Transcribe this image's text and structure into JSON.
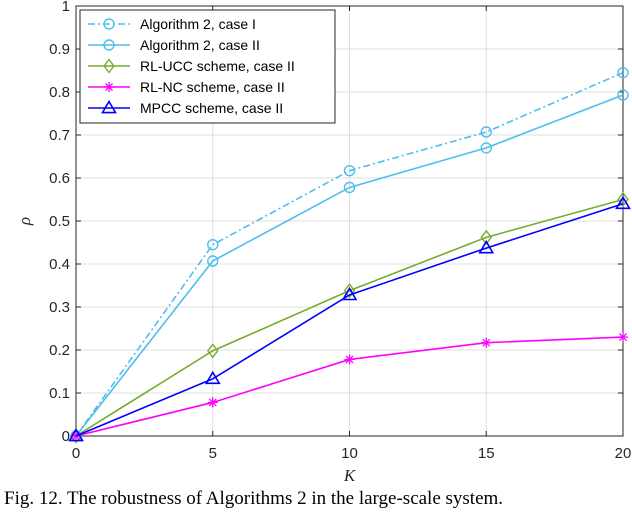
{
  "chart_data": {
    "type": "line",
    "xlabel": "K",
    "ylabel": "ρ",
    "xlim": [
      0,
      20
    ],
    "ylim": [
      0,
      1
    ],
    "x": [
      0,
      5,
      10,
      15,
      20
    ],
    "xticks": [
      "0",
      "5",
      "10",
      "15",
      "20"
    ],
    "yticks": [
      "0",
      "0.1",
      "0.2",
      "0.3",
      "0.4",
      "0.5",
      "0.6",
      "0.7",
      "0.8",
      "0.9",
      "1"
    ],
    "grid": true,
    "legend_position": "top-left",
    "series": [
      {
        "name": "Algorithm 2, case I",
        "values": [
          0,
          0.445,
          0.617,
          0.707,
          0.845
        ],
        "color": "#4DBEEE",
        "marker": "circle",
        "dash": "dashdot"
      },
      {
        "name": "Algorithm 2, case II",
        "values": [
          0,
          0.407,
          0.578,
          0.67,
          0.793
        ],
        "color": "#4DBEEE",
        "marker": "circle",
        "dash": "solid"
      },
      {
        "name": "RL-UCC scheme, case II",
        "values": [
          0,
          0.198,
          0.338,
          0.462,
          0.55
        ],
        "color": "#77AC30",
        "marker": "diamond",
        "dash": "solid"
      },
      {
        "name": "RL-NC scheme, case II",
        "values": [
          0,
          0.078,
          0.178,
          0.217,
          0.23
        ],
        "color": "#FF00FF",
        "marker": "asterisk",
        "dash": "solid"
      },
      {
        "name": "MPCC scheme, case II",
        "values": [
          0,
          0.133,
          0.328,
          0.437,
          0.54
        ],
        "color": "#0000FF",
        "marker": "triangle",
        "dash": "solid"
      }
    ]
  },
  "caption": "Fig. 12.  The robustness of Algorithms 2 in the large-scale system."
}
